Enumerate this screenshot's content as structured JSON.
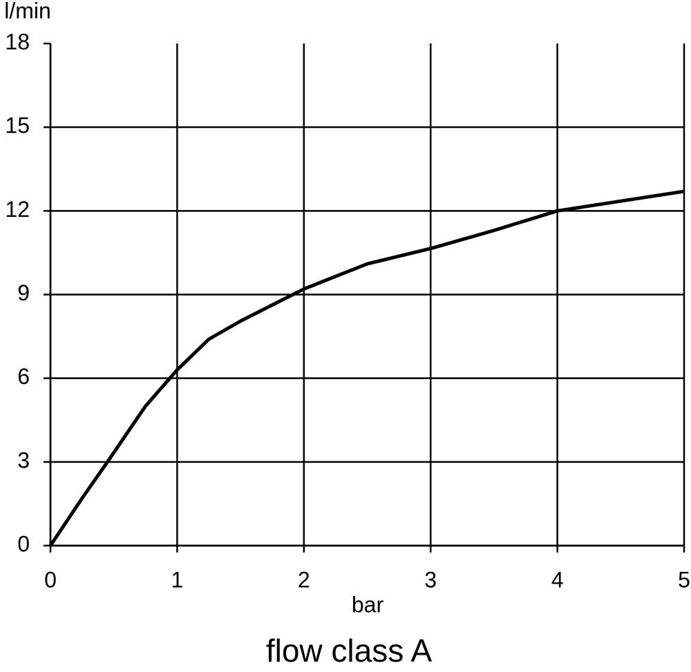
{
  "chart_data": {
    "type": "line",
    "title": "flow class A",
    "x_label": "bar",
    "y_label": "l/min",
    "x": [
      0,
      0.25,
      0.45,
      0.75,
      1,
      1.25,
      1.5,
      2,
      2.5,
      3,
      3.5,
      4,
      4.5,
      5
    ],
    "series": [
      {
        "name": "flow class A",
        "color": "#000000",
        "values": [
          0,
          1.7,
          3,
          5,
          6.3,
          7.4,
          8.05,
          9.2,
          10.1,
          10.65,
          11.3,
          12,
          12.35,
          12.7
        ]
      }
    ],
    "xlim": [
      0,
      5
    ],
    "xticks": [
      0,
      1,
      2,
      3,
      4,
      5
    ],
    "ylim": [
      0,
      18
    ],
    "yticks": [
      0,
      3,
      6,
      9,
      12,
      15,
      18
    ],
    "grid": true
  }
}
